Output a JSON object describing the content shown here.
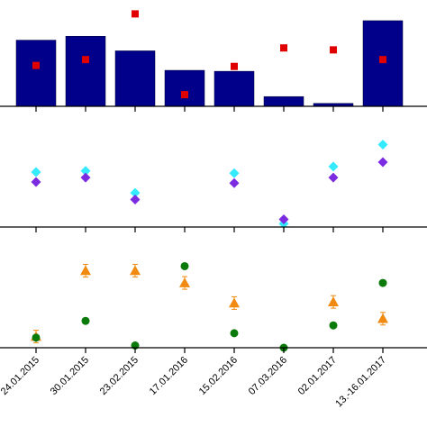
{
  "chart_data": [
    {
      "type": "bar",
      "panel": "top",
      "categories": [
        "24.01.2015",
        "30.01.2015",
        "23.02.2015",
        "17.01.2016",
        "15.02.2016",
        "07.03.2016",
        "02.01.2017",
        "13.-16.01.2017"
      ],
      "series": [
        {
          "kind": "bar",
          "values": [
            68,
            72,
            57,
            37,
            36,
            10,
            3,
            88
          ]
        },
        {
          "kind": "scatter",
          "marker": "square",
          "values": [
            42,
            48,
            95,
            12,
            41,
            60,
            58,
            48
          ]
        }
      ],
      "title": "",
      "xlabel": "",
      "ylabel": "",
      "ylim": [
        0,
        100
      ],
      "grid": false,
      "legend": "none"
    },
    {
      "type": "scatter",
      "panel": "middle",
      "categories": [
        "24.01.2015",
        "30.01.2015",
        "23.02.2015",
        "17.01.2016",
        "15.02.2016",
        "07.03.2016",
        "02.01.2017",
        "13.-16.01.2017"
      ],
      "series": [
        {
          "marker": "diamond",
          "values": [
            50,
            51,
            31,
            null,
            49,
            3,
            55,
            75
          ]
        },
        {
          "marker": "diamond",
          "values": [
            41,
            45,
            25,
            null,
            40,
            7,
            45,
            59
          ]
        }
      ],
      "title": "",
      "xlabel": "",
      "ylabel": "",
      "ylim": [
        0,
        100
      ],
      "grid": false,
      "legend": "none"
    },
    {
      "type": "scatter",
      "panel": "bottom",
      "categories": [
        "24.01.2015",
        "30.01.2015",
        "23.02.2015",
        "17.01.2016",
        "15.02.2016",
        "07.03.2016",
        "02.01.2017",
        "13.-16.01.2017"
      ],
      "series": [
        {
          "marker": "triangle",
          "error_bars": true,
          "values": [
            10,
            69,
            69,
            58,
            40,
            null,
            41,
            26
          ]
        },
        {
          "marker": "circle",
          "values": [
            9,
            24,
            2,
            73,
            13,
            0,
            20,
            58
          ]
        }
      ],
      "title": "",
      "xlabel": "",
      "ylabel": "",
      "ylim": [
        0,
        100
      ],
      "grid": false,
      "legend": "none"
    }
  ],
  "colors": {
    "bar": "#00008b",
    "square": "#e00000",
    "diamond_light": "#33eaff",
    "diamond_dark": "#7b2be0",
    "triangle": "#f08a10",
    "circle": "#0a7a0a",
    "axis": "#000000"
  }
}
